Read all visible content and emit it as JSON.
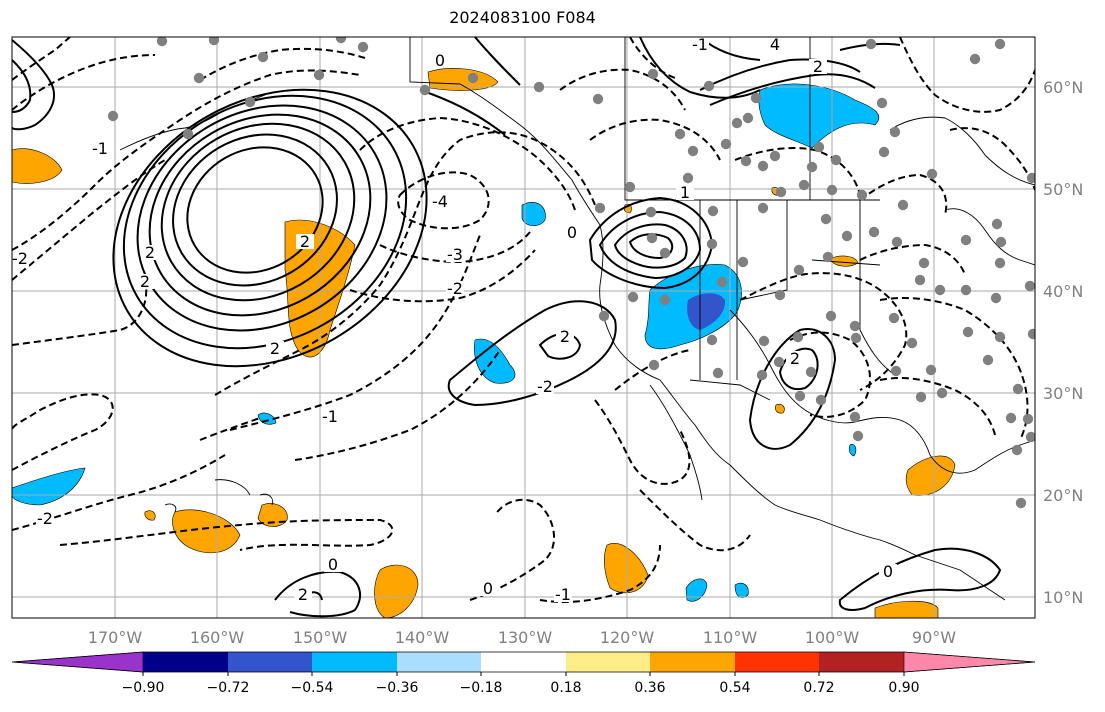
{
  "title": "2024083100 F084",
  "lon_labels": [
    "170°W",
    "160°W",
    "150°W",
    "140°W",
    "130°W",
    "120°W",
    "110°W",
    "100°W",
    "90°W"
  ],
  "lat_labels": [
    "60°N",
    "50°N",
    "40°N",
    "30°N",
    "20°N",
    "10°N"
  ],
  "colorbar": {
    "ticks": [
      "−0.90",
      "−0.72",
      "−0.54",
      "−0.36",
      "−0.18",
      "0.18",
      "0.36",
      "0.54",
      "0.72",
      "0.90"
    ],
    "colors": [
      "#9933cc",
      "#000088",
      "#3355cc",
      "#00bbff",
      "#aaddff",
      "#ffffff",
      "#ffee88",
      "#ffa500",
      "#ff3300",
      "#b22222",
      "#ff88aa"
    ]
  },
  "contour_labels": [
    "0",
    "4",
    "2",
    "-1",
    "2",
    "-4",
    "-3",
    "-2",
    "2",
    "2",
    "2",
    "-2",
    "2",
    "-2",
    "-1",
    "0",
    "2",
    "2",
    "-1",
    "0",
    "-2",
    "-1",
    "0",
    "1",
    "0"
  ],
  "station_dot_color": "#808080",
  "contour_color": "#000000",
  "grid_color": "#aaaaaa"
}
